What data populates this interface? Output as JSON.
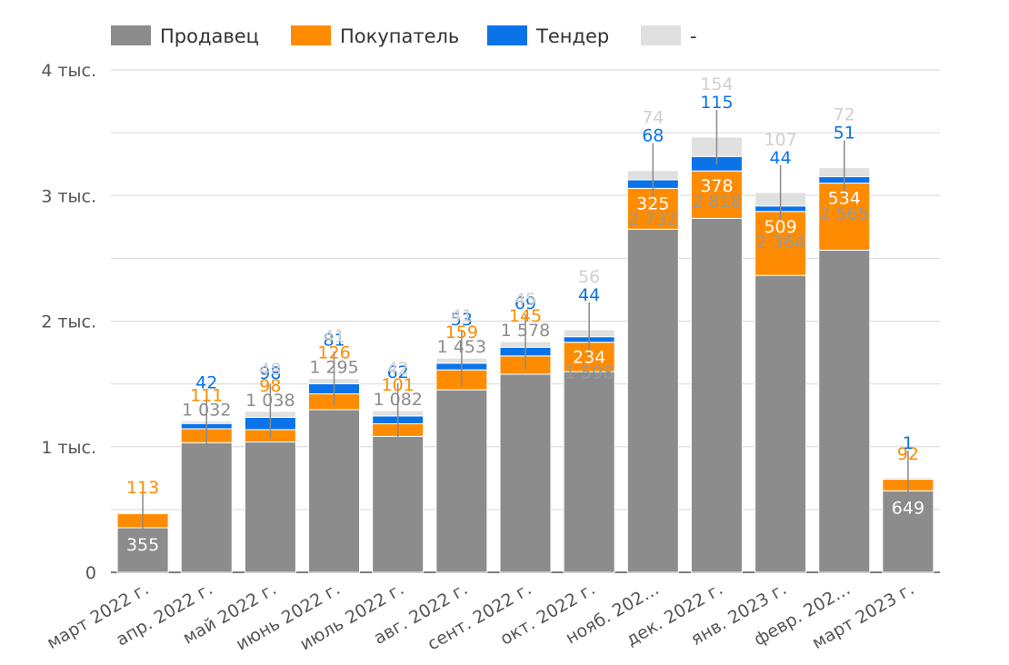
{
  "chart_data": {
    "type": "bar",
    "stacked": true,
    "categories": [
      "март 2022 г.",
      "апр. 2022 г.",
      "май 2022 г.",
      "июнь 2022 г.",
      "июль 2022 г.",
      "авг. 2022 г.",
      "сент. 2022 г.",
      "окт. 2022 г.",
      "нояб. 202…",
      "дек. 2022 г.",
      "янв. 2023 г.",
      "февр. 202…",
      "март 2023 г."
    ],
    "series": [
      {
        "name": "Продавец",
        "color": "#8c8c8c",
        "values": [
          355,
          1032,
          1038,
          1295,
          1082,
          1453,
          1578,
          1598,
          2732,
          2818,
          2364,
          2565,
          649
        ],
        "labels": [
          "355",
          "1 032",
          "1 038",
          "1 295",
          "1 082",
          "1 453",
          "1 578",
          "1 598",
          "2 732",
          "2 818",
          "2 364",
          "2 565",
          "649"
        ]
      },
      {
        "name": "Покупатель",
        "color": "#ff8c00",
        "values": [
          113,
          111,
          98,
          126,
          101,
          159,
          145,
          234,
          325,
          378,
          509,
          534,
          92
        ],
        "labels": [
          "113",
          "111",
          "98",
          "126",
          "101",
          "159",
          "145",
          "234",
          "325",
          "378",
          "509",
          "534",
          "92"
        ]
      },
      {
        "name": "Тендер",
        "color": "#0a73e8",
        "values": [
          0,
          42,
          98,
          81,
          62,
          53,
          69,
          44,
          68,
          115,
          44,
          51,
          1
        ],
        "labels": [
          "",
          "42",
          "98",
          "81",
          "62",
          "53",
          "69",
          "44",
          "68",
          "115",
          "44",
          "51",
          "1"
        ]
      },
      {
        "name": "-",
        "color": "#e0e0e0",
        "values": [
          2,
          21,
          48,
          41,
          42,
          41,
          45,
          56,
          74,
          154,
          107,
          72,
          12
        ],
        "labels": [
          "",
          "",
          "48",
          "41",
          "42",
          "41",
          "45",
          "56",
          "74",
          "154",
          "107",
          "72",
          ""
        ]
      }
    ],
    "ylim": [
      0,
      4000
    ],
    "y_ticks": [
      {
        "value": 0,
        "label": "0"
      },
      {
        "value": 1000,
        "label": "1 тыс."
      },
      {
        "value": 2000,
        "label": "2 тыс."
      },
      {
        "value": 3000,
        "label": "3 тыс."
      },
      {
        "value": 4000,
        "label": "4 тыс."
      }
    ],
    "grid": true,
    "legend_position": "top-left",
    "title": "",
    "xlabel": "",
    "ylabel": ""
  }
}
